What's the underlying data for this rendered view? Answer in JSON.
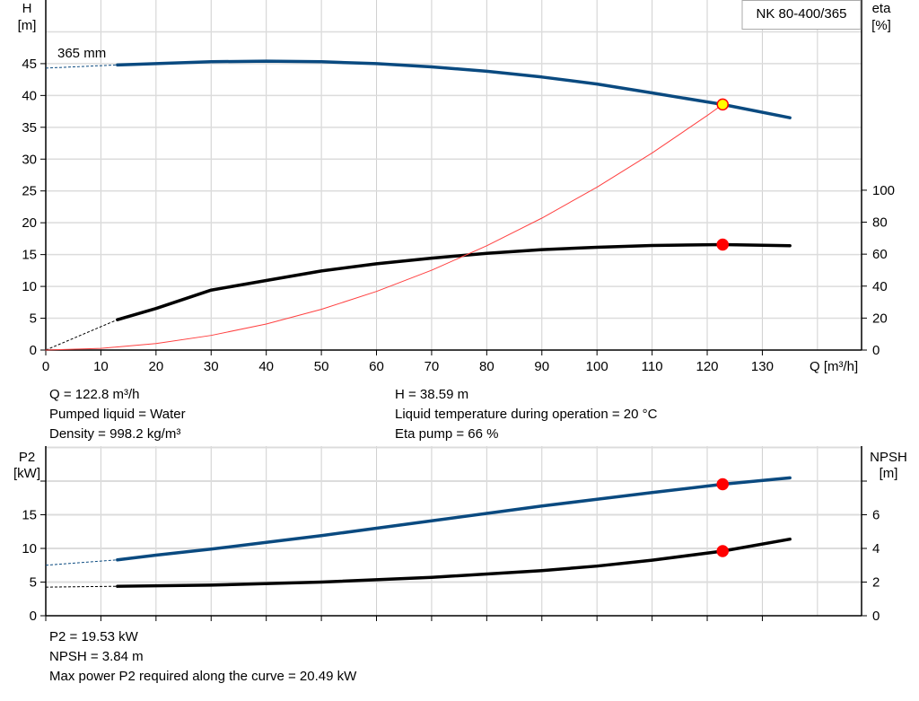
{
  "chart_data": [
    {
      "type": "line",
      "legend_box": "NK 80-400/365",
      "curve_label": "365 mm",
      "grid": true,
      "x_axis": {
        "label": "Q [m³/h]",
        "range": [
          0,
          148
        ],
        "ticks": [
          0,
          10,
          20,
          30,
          40,
          50,
          60,
          70,
          80,
          90,
          100,
          110,
          120,
          130
        ]
      },
      "y_left": {
        "label_line1": "H",
        "label_line2": "[m]",
        "range": [
          0,
          55
        ],
        "ticks": [
          0,
          5,
          10,
          15,
          20,
          25,
          30,
          35,
          40,
          45
        ]
      },
      "y_right": {
        "label_line1": "eta",
        "label_line2": "[%]",
        "range": [
          0,
          219
        ],
        "ticks": [
          0,
          20,
          40,
          60,
          80,
          100
        ]
      },
      "series": [
        {
          "key": "head",
          "axis": "left",
          "color": "#0a4a80",
          "extrapolated": [
            [
              0,
              44.3
            ],
            [
              13,
              44.8
            ]
          ],
          "points": [
            [
              13,
              44.8
            ],
            [
              20,
              45.0
            ],
            [
              30,
              45.3
            ],
            [
              40,
              45.4
            ],
            [
              50,
              45.3
            ],
            [
              60,
              45.0
            ],
            [
              70,
              44.5
            ],
            [
              80,
              43.8
            ],
            [
              90,
              42.9
            ],
            [
              100,
              41.8
            ],
            [
              110,
              40.4
            ],
            [
              122.8,
              38.59
            ],
            [
              135,
              36.5
            ]
          ]
        },
        {
          "key": "efficiency",
          "axis": "right",
          "color": "#000000",
          "extrapolated": [
            [
              0,
              0
            ],
            [
              13,
              19
            ]
          ],
          "points": [
            [
              13,
              19
            ],
            [
              20,
              26
            ],
            [
              30,
              37.5
            ],
            [
              40,
              43.5
            ],
            [
              50,
              49.5
            ],
            [
              60,
              54
            ],
            [
              70,
              57.5
            ],
            [
              80,
              60.5
            ],
            [
              90,
              62.8
            ],
            [
              100,
              64.3
            ],
            [
              110,
              65.4
            ],
            [
              122.8,
              66
            ],
            [
              135,
              65.3
            ]
          ]
        },
        {
          "key": "system-curve",
          "axis": "left",
          "color": "#ff4040",
          "points": [
            [
              0,
              0
            ],
            [
              10,
              0.26
            ],
            [
              20,
              1.02
            ],
            [
              30,
              2.3
            ],
            [
              40,
              4.09
            ],
            [
              50,
              6.4
            ],
            [
              60,
              9.21
            ],
            [
              70,
              12.54
            ],
            [
              80,
              16.38
            ],
            [
              90,
              20.73
            ],
            [
              100,
              25.59
            ],
            [
              110,
              30.96
            ],
            [
              120,
              36.85
            ],
            [
              122.8,
              38.59
            ]
          ]
        }
      ],
      "markers": [
        {
          "series": "head",
          "x": 122.8,
          "y": 38.59,
          "fill": "#ffff00",
          "stroke": "#ff0000"
        },
        {
          "series": "efficiency",
          "x": 122.8,
          "y": 66,
          "fill": "#ff0000",
          "stroke": "#ff0000"
        }
      ]
    },
    {
      "type": "line",
      "grid": true,
      "x_axis": {
        "range": [
          0,
          148
        ],
        "ticks": [
          0,
          10,
          20,
          30,
          40,
          50,
          60,
          70,
          80,
          90,
          100,
          110,
          120,
          130
        ]
      },
      "y_left": {
        "label_line1": "P2",
        "label_line2": "[kW]",
        "range": [
          0,
          25.2
        ],
        "ticks": [
          0,
          5,
          10,
          15
        ],
        "unlabeled_ticks": [
          20
        ]
      },
      "y_right": {
        "label_line1": "NPSH",
        "label_line2": "[m]",
        "range": [
          0,
          10.08
        ],
        "ticks": [
          0,
          2,
          4,
          6
        ],
        "unlabeled_ticks": [
          8
        ]
      },
      "series": [
        {
          "key": "power-p2",
          "axis": "left",
          "color": "#0a4a80",
          "extrapolated": [
            [
              0,
              7.5
            ],
            [
              13,
              8.3
            ]
          ],
          "points": [
            [
              13,
              8.3
            ],
            [
              20,
              9.0
            ],
            [
              30,
              9.9
            ],
            [
              40,
              10.9
            ],
            [
              50,
              11.9
            ],
            [
              60,
              13.0
            ],
            [
              70,
              14.1
            ],
            [
              80,
              15.2
            ],
            [
              90,
              16.3
            ],
            [
              100,
              17.3
            ],
            [
              110,
              18.3
            ],
            [
              122.8,
              19.53
            ],
            [
              135,
              20.49
            ]
          ]
        },
        {
          "key": "npsh",
          "axis": "right",
          "color": "#000000",
          "extrapolated": [
            [
              0,
              1.7
            ],
            [
              13,
              1.75
            ]
          ],
          "points": [
            [
              13,
              1.75
            ],
            [
              30,
              1.82
            ],
            [
              50,
              2.0
            ],
            [
              70,
              2.28
            ],
            [
              90,
              2.68
            ],
            [
              100,
              2.95
            ],
            [
              110,
              3.3
            ],
            [
              122.8,
              3.84
            ],
            [
              135,
              4.55
            ]
          ]
        }
      ],
      "markers": [
        {
          "series": "power-p2",
          "x": 122.8,
          "y": 19.53,
          "fill": "#ff0000",
          "stroke": "#ff0000"
        },
        {
          "series": "npsh",
          "x": 122.8,
          "y": 3.84,
          "fill": "#ff0000",
          "stroke": "#ff0000"
        }
      ]
    }
  ],
  "info_top": {
    "flow": "Q = 122.8 m³/h",
    "liquid": "Pumped liquid = Water",
    "density": "Density = 998.2 kg/m³",
    "head": "H = 38.59 m",
    "temperature": "Liquid temperature during operation = 20 °C",
    "eta": "Eta pump = 66 %"
  },
  "info_bottom": {
    "p2": "P2 = 19.53 kW",
    "npsh": "NPSH = 3.84 m",
    "max_power": "Max power P2 required along the curve = 20.49 kW"
  }
}
